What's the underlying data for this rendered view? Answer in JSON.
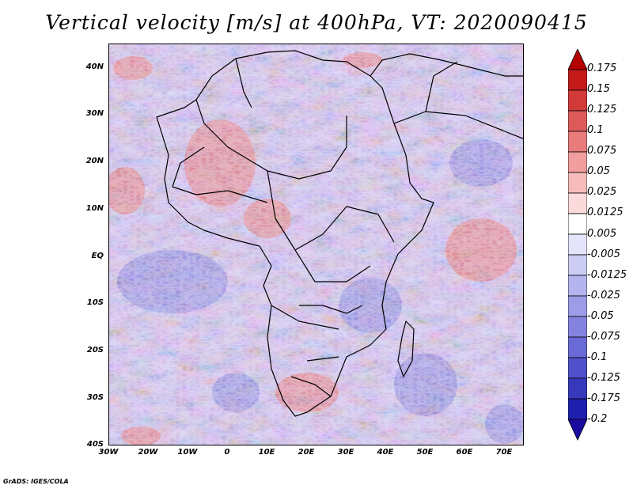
{
  "title": "Vertical velocity [m/s] at 400hPa, VT: 2020090415",
  "footer": "GrADS: IGES/COLA",
  "map": {
    "region": "Africa",
    "lon_range": [
      -30,
      75
    ],
    "lat_range": [
      -40,
      45
    ],
    "lat_ticks": [
      "40N",
      "30N",
      "20N",
      "10N",
      "EQ",
      "10S",
      "20S",
      "30S",
      "40S"
    ],
    "lon_ticks": [
      "30W",
      "20W",
      "10W",
      "0",
      "10E",
      "20E",
      "30E",
      "40E",
      "50E",
      "60E",
      "70E"
    ]
  },
  "colorbar": {
    "labels": [
      "0.175",
      "0.15",
      "0.125",
      "0.1",
      "0.075",
      "0.05",
      "0.025",
      "0.0125",
      "0.005",
      "-0.005",
      "-0.0125",
      "-0.025",
      "-0.05",
      "-0.075",
      "-0.1",
      "-0.125",
      "-0.175",
      "-0.2"
    ],
    "colors": [
      "#b40000",
      "#c41a1a",
      "#d23a3a",
      "#de5a5a",
      "#e87c7c",
      "#f09e9e",
      "#f6bcbc",
      "#fadada",
      "#ffffff",
      "#e4e4fa",
      "#ccccf4",
      "#b4b4ee",
      "#9c9ce8",
      "#8484e0",
      "#6a6ad6",
      "#5050ca",
      "#3838bc",
      "#2020ae",
      "#1a0aa0"
    ]
  }
}
